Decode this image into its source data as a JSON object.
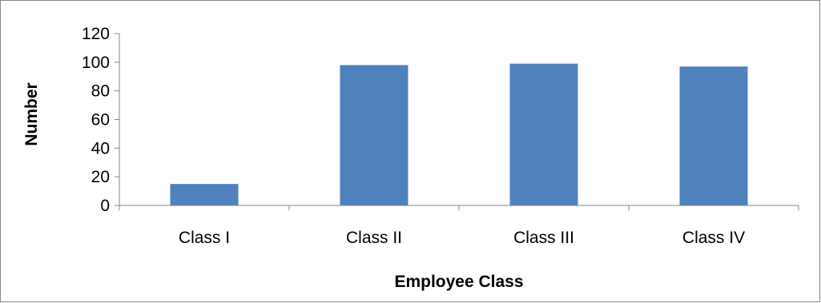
{
  "chart_data": {
    "type": "bar",
    "title": "",
    "xlabel": "Employee Class",
    "ylabel": "Number",
    "categories": [
      "Class I",
      "Class II",
      "Class III",
      "Class IV"
    ],
    "values": [
      15,
      98,
      99,
      97
    ],
    "ylim": [
      0,
      120
    ],
    "yticks": [
      0,
      20,
      40,
      60,
      80,
      100,
      120
    ],
    "grid": false,
    "legend": "none",
    "colors": {
      "bar": "#4f81bd",
      "axis": "#868686",
      "border": "#868686",
      "text": "#000000"
    }
  }
}
